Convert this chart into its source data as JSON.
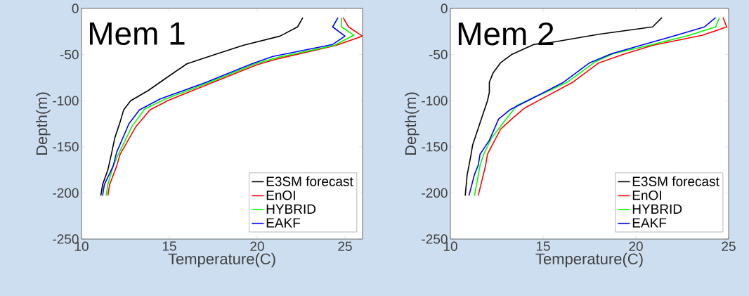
{
  "chart_data": [
    {
      "type": "line",
      "xlabel": "Temperature(C)",
      "ylabel": "Depth(m)",
      "annotations": [
        "Mem 1"
      ],
      "xlim": [
        10,
        26
      ],
      "ylim": [
        -250,
        0
      ],
      "xticks": [
        10,
        15,
        20,
        25
      ],
      "yticks": [
        -250,
        -200,
        -150,
        -100,
        -50,
        0
      ],
      "legend": "bottom right",
      "series": [
        {
          "name": "E3SM forecast",
          "color": "#000000",
          "x": [
            22.6,
            22.3,
            21.3,
            19.2,
            17.6,
            16.0,
            14.7,
            13.8,
            12.8,
            12.4,
            12.2,
            11.9,
            11.7,
            11.5,
            11.2,
            11.1
          ],
          "values": [
            -10,
            -20,
            -30,
            -40,
            -50,
            -60,
            -77,
            -89,
            -100,
            -110,
            -123,
            -140,
            -158,
            -175,
            -191,
            -203
          ]
        },
        {
          "name": "EnOI",
          "color": "#ff0000",
          "x": [
            24.9,
            25.2,
            26.0,
            24.5,
            21.3,
            20.0,
            17.5,
            14.9,
            13.9,
            13.1,
            12.2,
            12.0,
            11.6,
            11.5
          ],
          "values": [
            -10,
            -20,
            -30,
            -40,
            -54,
            -61,
            -80,
            -100,
            -110,
            -128,
            -158,
            -171,
            -191,
            -203
          ]
        },
        {
          "name": "HYBRID",
          "color": "#00ff00",
          "x": [
            24.8,
            24.8,
            25.5,
            24.4,
            21.2,
            19.9,
            17.3,
            14.8,
            13.6,
            12.9,
            12.1,
            11.8,
            11.5,
            11.4
          ],
          "values": [
            -10,
            -20,
            -29,
            -40,
            -53,
            -60,
            -80,
            -98,
            -109,
            -127,
            -158,
            -171,
            -191,
            -203
          ]
        },
        {
          "name": "EAKF",
          "color": "#0000ff",
          "x": [
            24.6,
            24.3,
            25.0,
            24.3,
            20.9,
            19.7,
            17.1,
            14.5,
            13.3,
            12.7,
            12.0,
            11.8,
            11.3,
            11.2
          ],
          "values": [
            -10,
            -20,
            -30,
            -39,
            -52,
            -60,
            -80,
            -98,
            -110,
            -125,
            -156,
            -171,
            -191,
            -203
          ]
        }
      ]
    },
    {
      "type": "line",
      "xlabel": "Temperature(C)",
      "ylabel": "Depth(m)",
      "annotations": [
        "Mem 2"
      ],
      "xlim": [
        10,
        25
      ],
      "ylim": [
        -250,
        0
      ],
      "xticks": [
        10,
        15,
        20,
        25
      ],
      "yticks": [
        -250,
        -200,
        -150,
        -100,
        -50,
        0
      ],
      "legend": "bottom right",
      "series": [
        {
          "name": "E3SM forecast",
          "color": "#000000",
          "x": [
            21.4,
            20.9,
            18.0,
            15.4,
            14.5,
            13.3,
            12.7,
            12.3,
            12.1,
            12.1,
            12.0,
            11.7,
            11.2,
            11.1,
            10.9,
            10.8
          ],
          "values": [
            -10,
            -20,
            -28,
            -37,
            -39,
            -50,
            -59,
            -70,
            -80,
            -91,
            -100,
            -118,
            -148,
            -160,
            -181,
            -203
          ]
        },
        {
          "name": "EnOI",
          "color": "#ff0000",
          "x": [
            24.7,
            24.9,
            23.6,
            20.9,
            19.3,
            18.0,
            16.6,
            14.0,
            13.3,
            12.7,
            12.0,
            11.9,
            11.5
          ],
          "values": [
            -10,
            -20,
            -29,
            -40,
            -50,
            -59,
            -80,
            -108,
            -120,
            -131,
            -158,
            -170,
            -203
          ]
        },
        {
          "name": "HYBRID",
          "color": "#00ff00",
          "x": [
            24.5,
            24.3,
            22.9,
            20.9,
            18.8,
            17.8,
            16.3,
            13.6,
            13.0,
            12.2,
            11.8,
            11.6,
            11.3
          ],
          "values": [
            -10,
            -20,
            -29,
            -39,
            -49,
            -58,
            -80,
            -105,
            -120,
            -141,
            -158,
            -170,
            -203
          ]
        },
        {
          "name": "EAKF",
          "color": "#0000ff",
          "x": [
            24.3,
            23.7,
            22.2,
            20.8,
            18.7,
            17.5,
            16.1,
            13.2,
            12.6,
            12.1,
            11.8,
            11.6,
            11.5,
            11.3,
            11.0
          ],
          "values": [
            -10,
            -20,
            -29,
            -37,
            -49,
            -59,
            -80,
            -110,
            -120,
            -143,
            -152,
            -158,
            -170,
            -180,
            -203
          ]
        }
      ]
    }
  ]
}
